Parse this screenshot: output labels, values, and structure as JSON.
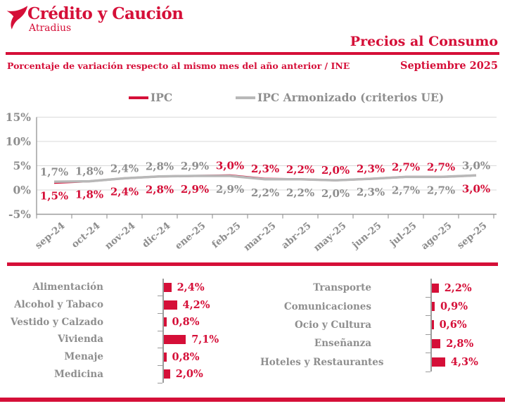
{
  "brand": {
    "name": "Crédito y Caución",
    "subname": "Atradius"
  },
  "header": {
    "title": "Precios al Consumo",
    "subtitle": "Porcentaje de variación respecto al mismo mes del año anterior / INE",
    "date": "Septiembre 2025"
  },
  "colors": {
    "red": "#d50f38",
    "gray_text": "#8e8e8e",
    "gray_line": "#b8b8b8",
    "gridline": "#d9d9d9",
    "axis": "#9b9b9b"
  },
  "chart_data": [
    {
      "type": "line",
      "title": "Precios al Consumo",
      "subtitle": "Porcentaje de variación respecto al mismo mes del año anterior / INE",
      "categories": [
        "sep-24",
        "oct-24",
        "nov-24",
        "dic-24",
        "ene-25",
        "feb-25",
        "mar-25",
        "abr-25",
        "may-25",
        "jun-25",
        "jul-25",
        "ago-25",
        "sep-25"
      ],
      "series": [
        {
          "name": "IPC",
          "color": "#d50f38",
          "label_color": "#d50f38",
          "values": [
            1.5,
            1.8,
            2.4,
            2.8,
            2.9,
            3.0,
            2.3,
            2.2,
            2.0,
            2.3,
            2.7,
            2.7,
            3.0
          ],
          "labels": [
            "1,5%",
            "1,8%",
            "2,4%",
            "2,8%",
            "2,9%",
            "3,0%",
            "2,3%",
            "2,2%",
            "2,0%",
            "2,3%",
            "2,7%",
            "2,7%",
            "3,0%"
          ]
        },
        {
          "name": "IPC Armonizado (criterios UE)",
          "color": "#b8b8b8",
          "label_color": "#8e8e8e",
          "values": [
            1.7,
            1.8,
            2.4,
            2.8,
            2.9,
            2.9,
            2.2,
            2.2,
            2.0,
            2.3,
            2.7,
            2.7,
            3.0
          ],
          "labels": [
            "1,7%",
            "1,8%",
            "2,4%",
            "2,8%",
            "2,9%",
            "2,9%",
            "2,2%",
            "2,2%",
            "2,0%",
            "2,3%",
            "2,7%",
            "2,7%",
            "3,0%"
          ]
        }
      ],
      "label_top_series": [
        1,
        1,
        1,
        1,
        1,
        0,
        0,
        0,
        0,
        0,
        0,
        0,
        1
      ],
      "y_ticks": [
        {
          "label": "15%",
          "value": 15
        },
        {
          "label": "10%",
          "value": 10
        },
        {
          "label": "5%",
          "value": 5
        },
        {
          "label": "0%",
          "value": 0
        },
        {
          "label": "-5%",
          "value": -5
        }
      ],
      "ylim": [
        -5,
        15
      ],
      "grid": true,
      "legend_position": "top"
    },
    {
      "type": "bar",
      "orientation": "horizontal",
      "group": "left",
      "rows": [
        {
          "label": "Alimentación",
          "value": 2.4,
          "value_label": "2,4%"
        },
        {
          "label": "Alcohol y Tabaco",
          "value": 4.2,
          "value_label": "4,2%"
        },
        {
          "label": "Vestido y Calzado",
          "value": 0.8,
          "value_label": "0,8%"
        },
        {
          "label": "Vivienda",
          "value": 7.1,
          "value_label": "7,1%"
        },
        {
          "label": "Menaje",
          "value": 0.8,
          "value_label": "0,8%"
        },
        {
          "label": "Medicina",
          "value": 2.0,
          "value_label": "2,0%"
        }
      ]
    },
    {
      "type": "bar",
      "orientation": "horizontal",
      "group": "right",
      "rows": [
        {
          "label": "Transporte",
          "value": 2.2,
          "value_label": "2,2%"
        },
        {
          "label": "Comunicaciones",
          "value": 0.9,
          "value_label": "0,9%"
        },
        {
          "label": "Ocio y Cultura",
          "value": 0.6,
          "value_label": "0,6%"
        },
        {
          "label": "Enseñanza",
          "value": 2.8,
          "value_label": "2,8%"
        },
        {
          "label": "Hoteles y Restaurantes",
          "value": 4.3,
          "value_label": "4,3%"
        }
      ]
    }
  ]
}
